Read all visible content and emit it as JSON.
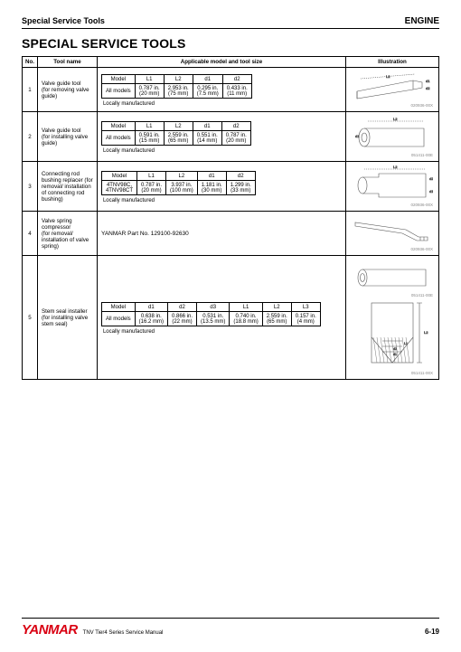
{
  "header": {
    "left": "Special Service Tools",
    "right": "ENGINE"
  },
  "title": "SPECIAL SERVICE TOOLS",
  "columns": {
    "no": "No.",
    "name": "Tool name",
    "spec": "Applicable model and tool size",
    "ill": "Illustration"
  },
  "locally": "Locally manufactured",
  "rows": [
    {
      "no": "1",
      "name": "Valve guide tool\n(for removing valve guide)",
      "table": {
        "headers": [
          "Model",
          "L1",
          "L2",
          "d1",
          "d2"
        ],
        "rows": [
          [
            "All models",
            "0.787 in.\n(20 mm)",
            "2.953 in.\n(75 mm)",
            "0.295 in.\n(7.5 mm)",
            "0.433 in.\n(11 mm)"
          ]
        ]
      },
      "ill_code": "020936-00X"
    },
    {
      "no": "2",
      "name": "Valve guide tool\n(for installing valve guide)",
      "table": {
        "headers": [
          "Model",
          "L1",
          "L2",
          "d1",
          "d2"
        ],
        "rows": [
          [
            "All models",
            "0.591 in.\n(15 mm)",
            "2.559 in.\n(65 mm)",
            "0.551 in.\n(14 mm)",
            "0.787 in.\n(20 mm)"
          ]
        ]
      },
      "ill_code": "051411-00E"
    },
    {
      "no": "3",
      "name": "Connecting rod bushing replacer (for removal/ installation of connecting rod bushing)",
      "table": {
        "headers": [
          "Model",
          "L1",
          "L2",
          "d1",
          "d2"
        ],
        "rows": [
          [
            "4TNV98C,\n4TNV98CT",
            "0.787 in.\n(20 mm)",
            "3.937 in.\n(100 mm)",
            "1.181 in.\n(30 mm)",
            "1.299 in.\n(33 mm)"
          ]
        ]
      },
      "ill_code": "020936-00X"
    },
    {
      "no": "4",
      "name": "Valve spring compressor\n(for removal/ installation of valve spring)",
      "partno": "YANMAR Part No. 129100-92630",
      "ill_code": "020936-00X"
    },
    {
      "no": "5",
      "name": "Stem seal installer\n(for installing valve stem seal)",
      "table": {
        "headers": [
          "Model",
          "d1",
          "d2",
          "d3",
          "L1",
          "L2",
          "L3"
        ],
        "rows": [
          [
            "All models",
            "0.638 in.\n(16.2 mm)",
            "0.866 in.\n(22 mm)",
            "0.531 in.\n(13.5 mm)",
            "0.740 in.\n(18.8 mm)",
            "2.559 in.\n(65 mm)",
            "0.157 in.\n(4 mm)"
          ]
        ]
      },
      "ill_codes": [
        "051411-00E",
        "051411-00X"
      ]
    }
  ],
  "footer": {
    "brand": "YANMAR",
    "manual": "TNV Tier4 Series Service Manual",
    "page": "6-19"
  },
  "colors": {
    "brand": "#d90012",
    "line": "#000000",
    "ill_stroke": "#777777"
  }
}
